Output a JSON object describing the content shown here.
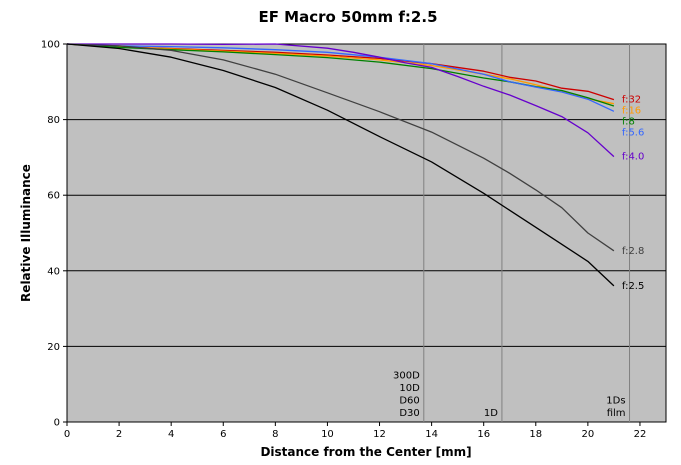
{
  "chart_data": {
    "type": "line",
    "title": "EF Macro 50mm f:2.5",
    "xlabel": "Distance from the Center [mm]",
    "ylabel": "Relative Illuminance",
    "xlim": [
      0,
      23
    ],
    "ylim": [
      0,
      100
    ],
    "x_ticks": [
      0,
      2,
      4,
      6,
      8,
      10,
      12,
      14,
      16,
      18,
      20,
      22
    ],
    "y_ticks": [
      0,
      20,
      40,
      60,
      80,
      100
    ],
    "grid": "horizontal",
    "background": "#c0c0c0",
    "series": [
      {
        "name": "f:32",
        "color": "#cc0000",
        "x": [
          0,
          2,
          4,
          6,
          8,
          10,
          12,
          14,
          16,
          17,
          18,
          19,
          20,
          21
        ],
        "y": [
          100,
          99.2,
          98.8,
          98.3,
          97.8,
          97.1,
          96.2,
          94.8,
          92.8,
          91.2,
          90.2,
          88.3,
          87.5,
          85.3
        ]
      },
      {
        "name": "f:16",
        "color": "#ff9900",
        "x": [
          0,
          2,
          4,
          6,
          8,
          10,
          12,
          14,
          16,
          17,
          18,
          19,
          20,
          21
        ],
        "y": [
          100,
          99.2,
          98.7,
          98.1,
          97.5,
          96.8,
          95.8,
          94.3,
          92.0,
          90.8,
          89.2,
          87.4,
          85.5,
          84.2
        ]
      },
      {
        "name": "f:8",
        "color": "#008000",
        "x": [
          0,
          2,
          4,
          6,
          8,
          10,
          12,
          14,
          16,
          17,
          18,
          19,
          20,
          21
        ],
        "y": [
          100,
          99.1,
          98.5,
          97.9,
          97.2,
          96.4,
          95.2,
          93.5,
          91.0,
          90.0,
          88.7,
          87.7,
          85.8,
          83.6
        ]
      },
      {
        "name": "f:5.6",
        "color": "#3366ff",
        "x": [
          0,
          2,
          4,
          6,
          8,
          10,
          12,
          14,
          16,
          17,
          18,
          19,
          20,
          21
        ],
        "y": [
          100,
          99.5,
          99.3,
          99.0,
          98.5,
          97.8,
          96.5,
          94.8,
          92.0,
          90.0,
          88.6,
          87.3,
          85.4,
          82.2
        ]
      },
      {
        "name": "f:4.0",
        "color": "#6600cc",
        "x": [
          0,
          2,
          4,
          6,
          8,
          10,
          11,
          12,
          13,
          14,
          15,
          16,
          17,
          18,
          19,
          20,
          21
        ],
        "y": [
          100,
          100,
          100,
          99.9,
          100,
          98.9,
          97.8,
          96.5,
          95.0,
          93.8,
          91.4,
          88.8,
          86.5,
          83.7,
          80.8,
          76.5,
          70.2
        ]
      },
      {
        "name": "f:2.8",
        "color": "#404040",
        "x": [
          0,
          2,
          4,
          6,
          8,
          10,
          12,
          14,
          16,
          17,
          18,
          19,
          20,
          21
        ],
        "y": [
          100,
          99.5,
          98.3,
          95.8,
          92.0,
          87.1,
          82.1,
          76.7,
          69.8,
          65.8,
          61.4,
          56.7,
          50.0,
          45.3
        ]
      },
      {
        "name": "f:2.5",
        "color": "#000000",
        "x": [
          0,
          2,
          4,
          6,
          8,
          10,
          12,
          14,
          16,
          17,
          18,
          19,
          20,
          21
        ],
        "y": [
          100,
          98.8,
          96.5,
          93.0,
          88.5,
          82.5,
          75.5,
          68.8,
          60.5,
          56.0,
          51.5,
          47.0,
          42.5,
          36.0
        ]
      }
    ],
    "vertical_lines": [
      {
        "x": 13.7,
        "labels": [
          "300D",
          "10D",
          "D60",
          "D30"
        ]
      },
      {
        "x": 16.7,
        "labels": [
          "1D"
        ]
      },
      {
        "x": 21.6,
        "labels": [
          "1Ds",
          "film"
        ]
      }
    ]
  }
}
